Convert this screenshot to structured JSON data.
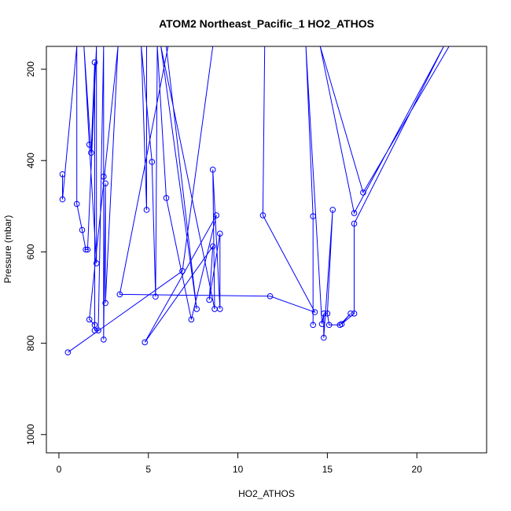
{
  "chart_data": {
    "type": "line",
    "title": "ATOM2 Northeast_Pacific_1 HO2_ATHOS",
    "xlabel": "HO2_ATHOS",
    "ylabel": "Pressure (mbar)",
    "xlim": [
      -0.7,
      23.9
    ],
    "ylim": [
      1040,
      150
    ],
    "y_inverted": true,
    "x_ticks": [
      0,
      5,
      10,
      15,
      20
    ],
    "x_tick_labels": [
      "0",
      "5",
      "10",
      "15",
      "20"
    ],
    "y_ticks": [
      200,
      400,
      600,
      800,
      1000
    ],
    "y_tick_labels": [
      "200",
      "400",
      "600",
      "800",
      "1000"
    ],
    "grid": false,
    "legend": "none",
    "series": [
      {
        "color": "#0000ff",
        "marker": "open-circle",
        "points": [
          [
            0.2,
            430
          ],
          [
            0.2,
            485
          ],
          [
            1.0,
            150
          ],
          [
            1.0,
            495
          ],
          [
            1.3,
            552
          ],
          [
            1.5,
            595
          ],
          [
            1.6,
            595
          ],
          [
            2.1,
            150
          ],
          [
            2.1,
            625
          ],
          [
            1.7,
            365
          ],
          [
            1.4,
            150
          ],
          [
            1.8,
            383
          ],
          [
            2.0,
            185
          ],
          [
            2.0,
            772
          ],
          [
            2.2,
            772
          ],
          [
            2.5,
            150
          ],
          [
            2.5,
            435
          ],
          [
            2.5,
            792
          ],
          [
            2.6,
            450
          ],
          [
            2.6,
            712
          ],
          [
            3.3,
            150
          ],
          [
            1.7,
            748
          ],
          [
            2.0,
            760
          ]
        ]
      },
      {
        "color": "#0000ff",
        "marker": "open-circle",
        "points": [
          [
            0.5,
            820
          ],
          [
            6.9,
            642
          ],
          [
            8.6,
            150
          ],
          [
            4.9,
            150
          ],
          [
            4.9,
            508
          ],
          [
            4.6,
            150
          ],
          [
            5.2,
            403
          ],
          [
            5.4,
            698
          ],
          [
            5.5,
            150
          ],
          [
            6.0,
            482
          ],
          [
            7.4,
            748
          ],
          [
            8.8,
            520
          ],
          [
            4.8,
            798
          ],
          [
            8.6,
            588
          ],
          [
            8.4,
            705
          ],
          [
            9.0,
            560
          ],
          [
            9.0,
            725
          ],
          [
            8.6,
            420
          ],
          [
            8.7,
            725
          ],
          [
            5.7,
            150
          ],
          [
            7.7,
            725
          ],
          [
            6.0,
            150
          ],
          [
            6.1,
            150
          ],
          [
            3.4,
            693
          ],
          [
            11.8,
            697
          ],
          [
            14.3,
            732
          ],
          [
            11.4,
            520
          ],
          [
            11.5,
            150
          ]
        ]
      },
      {
        "color": "#0000ff",
        "marker": "open-circle",
        "points": [
          [
            14.2,
            760
          ],
          [
            14.2,
            522
          ],
          [
            13.8,
            150
          ],
          [
            14.7,
            758
          ],
          [
            14.8,
            735
          ],
          [
            14.8,
            788
          ],
          [
            15.3,
            508
          ],
          [
            15.0,
            735
          ],
          [
            15.1,
            760
          ],
          [
            15.7,
            760
          ],
          [
            16.3,
            735
          ],
          [
            15.8,
            758
          ],
          [
            16.5,
            735
          ],
          [
            16.5,
            538
          ],
          [
            21.5,
            150
          ],
          [
            16.5,
            515
          ],
          [
            14.6,
            150
          ],
          [
            17.0,
            470
          ],
          [
            21.8,
            150
          ],
          [
            15.0,
            150
          ]
        ]
      }
    ]
  }
}
